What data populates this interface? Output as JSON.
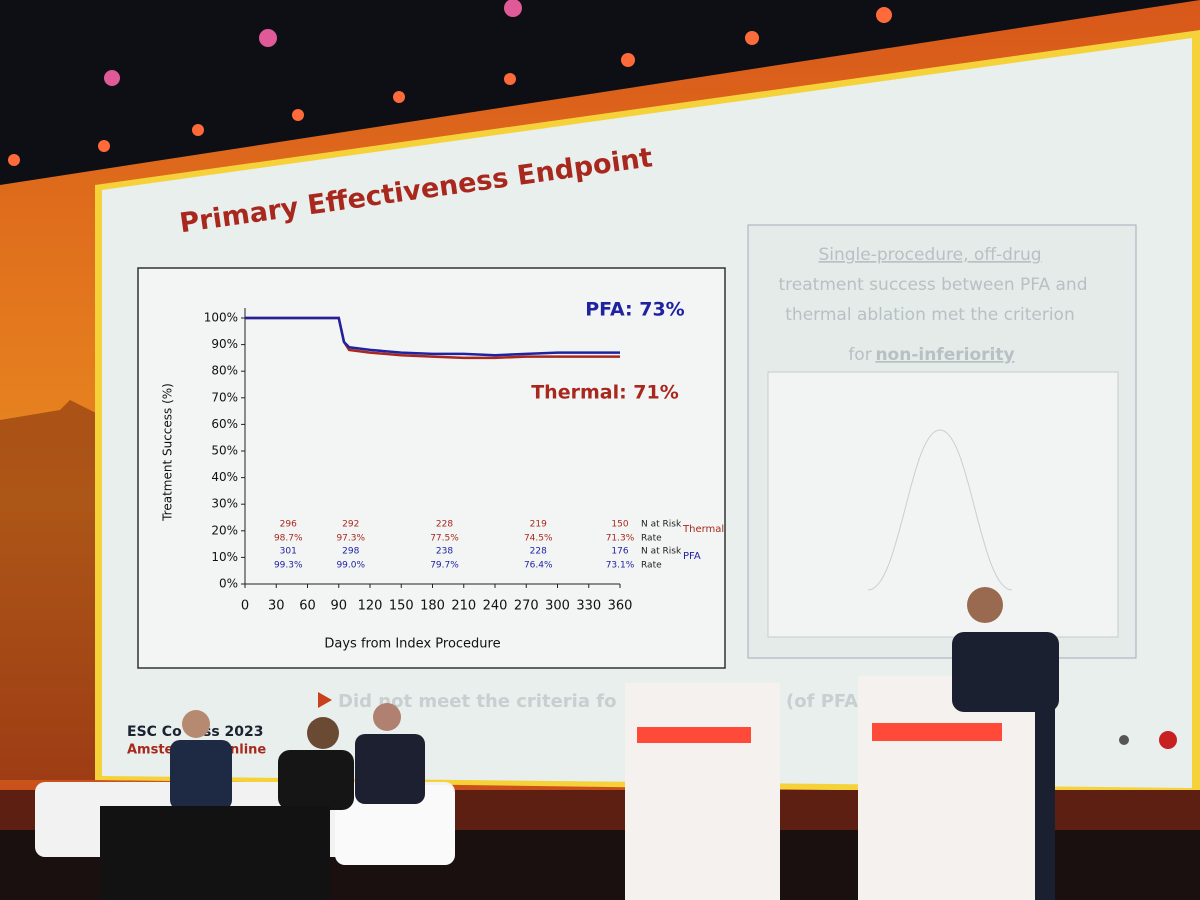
{
  "chart_data": {
    "type": "line",
    "title": "Primary Effectiveness Endpoint",
    "xlabel": "Days from Index Procedure",
    "ylabel": "Treatment Success (%)",
    "x": [
      0,
      30,
      60,
      90,
      95,
      100,
      120,
      150,
      180,
      210,
      240,
      270,
      300,
      330,
      360
    ],
    "series": [
      {
        "color": "#a8281e",
        "values": [
          100,
          100,
          100,
          100,
          91,
          88,
          87,
          86,
          85.5,
          85,
          85,
          85.5,
          85.5,
          85.5,
          85.5
        ]
      },
      {
        "color": "#1f23a0",
        "values": [
          100,
          100,
          100,
          100,
          91,
          89,
          88,
          87,
          86.5,
          86.5,
          86,
          86.5,
          87,
          87,
          87
        ]
      }
    ],
    "xlim": [
      0,
      360
    ],
    "xticks": [
      0,
      30,
      60,
      90,
      120,
      150,
      180,
      210,
      240,
      270,
      300,
      330,
      360
    ],
    "ylim": [
      0,
      100
    ],
    "yticks": [
      {
        "value": 0,
        "label": "0%"
      },
      {
        "value": 10,
        "label": "10%"
      },
      {
        "value": 20,
        "label": "20%"
      },
      {
        "value": 30,
        "label": "30%"
      },
      {
        "value": 40,
        "label": "40%"
      },
      {
        "value": 50,
        "label": "50%"
      },
      {
        "value": 60,
        "label": "60%"
      },
      {
        "value": 70,
        "label": "70%"
      },
      {
        "value": 80,
        "label": "80%"
      },
      {
        "value": 90,
        "label": "90%"
      },
      {
        "value": 100,
        "label": "100%"
      }
    ],
    "annotations": [
      "PFA: 73%",
      "Thermal: 71%"
    ],
    "risk_table": [
      {
        "group": "Thermal",
        "rows": [
          {
            "label": "N at Risk",
            "values": [
              "296",
              "292",
              "228",
              "219",
              "150"
            ]
          },
          {
            "label": "Rate",
            "values": [
              "98.7%",
              "97.3%",
              "77.5%",
              "74.5%",
              "71.3%"
            ]
          }
        ]
      },
      {
        "group": "PFA",
        "rows": [
          {
            "label": "N at Risk",
            "values": [
              "301",
              "298",
              "238",
              "228",
              "176"
            ]
          },
          {
            "label": "Rate",
            "values": [
              "99.3%",
              "99.0%",
              "79.7%",
              "76.4%",
              "73.1%"
            ]
          }
        ]
      }
    ]
  },
  "side_panel": {
    "line1": "Single-procedure, off-drug",
    "line2": "treatment success between PFA and",
    "line3": "thermal ablation met the criterion",
    "line4_prefix": "for",
    "line4_emph": "non-inferiority"
  },
  "bottom_text": {
    "left": "Did not meet the criteria fo",
    "right": "(of PFA"
  },
  "footer": {
    "a": "ESC Co",
    "b": "ss 2023",
    "c": "Amsterd",
    "d": "nline"
  }
}
